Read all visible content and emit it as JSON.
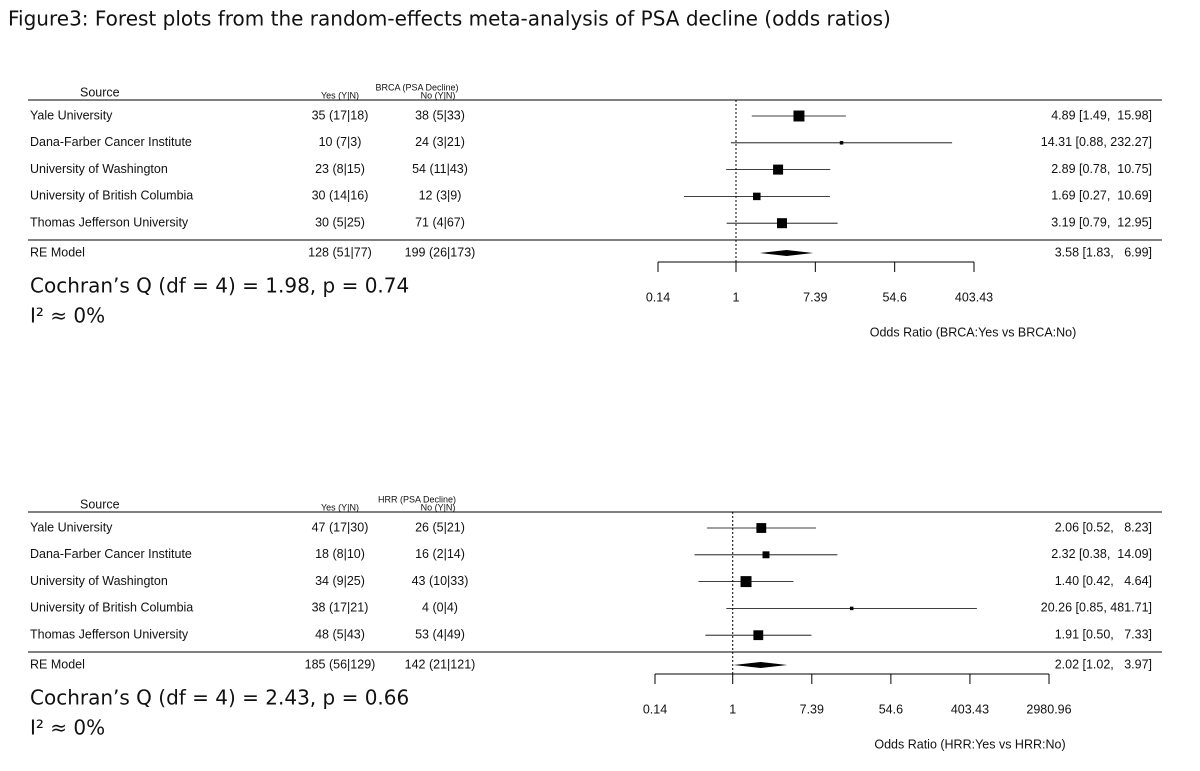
{
  "title": "Figure3: Forest plots from the random-effects meta-analysis of PSA decline (odds ratios)",
  "chart_data": [
    {
      "type": "forest",
      "title": "BRCA (PSA Decline)",
      "columns": [
        "Source",
        "Yes (Y|N)",
        "No (Y|N)"
      ],
      "categories": [
        "Yale University",
        "Dana-Farber Cancer Institute",
        "University of Washington",
        "University of British Columbia",
        "Thomas Jefferson University"
      ],
      "yes": [
        "35 (17|18)",
        "10 (7|3)",
        "23 (8|15)",
        "30 (14|16)",
        "30 (5|25)"
      ],
      "no": [
        "38 (5|33)",
        "24 (3|21)",
        "54 (11|43)",
        "12 (3|9)",
        "71 (4|67)"
      ],
      "values": [
        4.89,
        14.31,
        2.89,
        1.69,
        3.19
      ],
      "ci_lower": [
        1.49,
        0.88,
        0.78,
        0.27,
        0.79
      ],
      "ci_upper": [
        15.98,
        232.27,
        10.75,
        10.69,
        12.95
      ],
      "weights": [
        30,
        3,
        25,
        14,
        25
      ],
      "value_labels": [
        "4.89 [1.49,  15.98]",
        "14.31 [0.88, 232.27]",
        "2.89 [0.78,  10.75]",
        "1.69 [0.27,  10.69]",
        "3.19 [0.79,  12.95]"
      ],
      "summary": {
        "label": "RE Model",
        "yes": "128 (51|77)",
        "no": "199 (26|173)",
        "value": 3.58,
        "ci_lower": 1.83,
        "ci_upper": 6.99,
        "value_label": "3.58 [1.83,   6.99]"
      },
      "xlabel": "Odds Ratio (BRCA:Yes vs BRCA:No)",
      "log_x": true,
      "xlim": [
        0.14,
        403.43
      ],
      "xticks": [
        0.14,
        1,
        7.39,
        54.6,
        403.43
      ],
      "reference_line": 1,
      "annotations": [
        "Cochran’s Q (df = 4) = 1.98, p = 0.74",
        "I² ≈ 0%"
      ]
    },
    {
      "type": "forest",
      "title": "HRR (PSA Decline)",
      "columns": [
        "Source",
        "Yes (Y|N)",
        "No (Y|N)"
      ],
      "categories": [
        "Yale University",
        "Dana-Farber Cancer Institute",
        "University of Washington",
        "University of British Columbia",
        "Thomas Jefferson University"
      ],
      "yes": [
        "47 (17|30)",
        "18 (8|10)",
        "34 (9|25)",
        "38 (17|21)",
        "48 (5|43)"
      ],
      "no": [
        "26 (5|21)",
        "16 (2|14)",
        "43 (10|33)",
        "4 (0|4)",
        "53 (4|49)"
      ],
      "values": [
        2.06,
        2.32,
        1.4,
        20.26,
        1.91
      ],
      "ci_lower": [
        0.52,
        0.38,
        0.42,
        0.85,
        0.5
      ],
      "ci_upper": [
        8.23,
        14.09,
        4.64,
        481.71,
        7.33
      ],
      "weights": [
        24,
        12,
        30,
        3,
        24
      ],
      "value_labels": [
        "2.06 [0.52,   8.23]",
        "2.32 [0.38,  14.09]",
        "1.40 [0.42,   4.64]",
        "20.26 [0.85, 481.71]",
        "1.91 [0.50,   7.33]"
      ],
      "summary": {
        "label": "RE Model",
        "yes": "185 (56|129)",
        "no": "142 (21|121)",
        "value": 2.02,
        "ci_lower": 1.02,
        "ci_upper": 3.97,
        "value_label": "2.02 [1.02,   3.97]"
      },
      "xlabel": "Odds Ratio (HRR:Yes vs HRR:No)",
      "log_x": true,
      "xlim": [
        0.14,
        2980.96
      ],
      "xticks": [
        0.14,
        1,
        7.39,
        54.6,
        403.43,
        2980.96
      ],
      "reference_line": 1,
      "annotations": [
        "Cochran’s Q (df = 4) = 2.43, p = 0.66",
        "I² ≈ 0%"
      ]
    }
  ]
}
